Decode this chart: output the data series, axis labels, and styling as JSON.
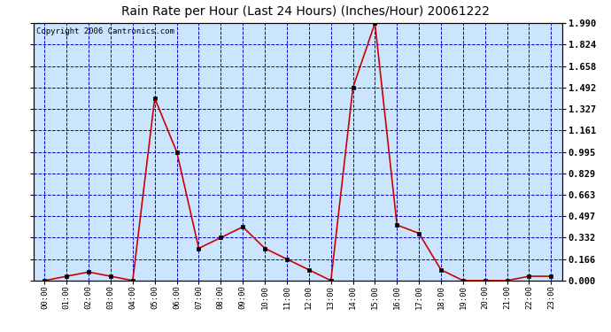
{
  "title": "Rain Rate per Hour (Last 24 Hours) (Inches/Hour) 20061222",
  "copyright": "Copyright 2006 Cantronics.com",
  "x_labels": [
    "00:00",
    "01:00",
    "02:00",
    "03:00",
    "04:00",
    "05:00",
    "06:00",
    "07:00",
    "08:00",
    "09:00",
    "10:00",
    "11:00",
    "12:00",
    "13:00",
    "14:00",
    "15:00",
    "16:00",
    "17:00",
    "18:00",
    "19:00",
    "20:00",
    "21:00",
    "22:00",
    "23:00"
  ],
  "y_values": [
    0.0,
    0.033,
    0.066,
    0.033,
    0.0,
    1.41,
    0.995,
    0.249,
    0.332,
    0.415,
    0.249,
    0.166,
    0.083,
    0.0,
    1.492,
    1.99,
    0.43,
    0.365,
    0.083,
    0.0,
    0.0,
    0.0,
    0.033,
    0.033
  ],
  "y_ticks": [
    0.0,
    0.166,
    0.332,
    0.497,
    0.663,
    0.829,
    0.995,
    1.161,
    1.327,
    1.492,
    1.658,
    1.824,
    1.99
  ],
  "y_max": 1.99,
  "line_color": "#cc0000",
  "background_color": "#cce5ff",
  "plot_bg_color": "#cce5ff",
  "outer_bg_color": "#ffffff",
  "grid_color": "#0000cc",
  "title_fontsize": 10,
  "copyright_fontsize": 6.5
}
